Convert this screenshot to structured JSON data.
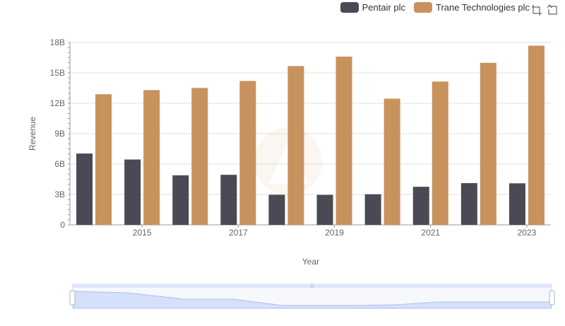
{
  "chart_data": {
    "type": "bar",
    "title": "",
    "xlabel": "Year",
    "ylabel": "Revenue",
    "categories": [
      "2014",
      "2015",
      "2016",
      "2017",
      "2018",
      "2019",
      "2020",
      "2021",
      "2022",
      "2023"
    ],
    "x_tick_labels": [
      "2015",
      "2017",
      "2019",
      "2021",
      "2023"
    ],
    "y_tick_labels": [
      "0",
      "3B",
      "6B",
      "9B",
      "12B",
      "15B",
      "18B"
    ],
    "ylim": [
      0,
      18000000000
    ],
    "grid": true,
    "legend_position": "top-right",
    "series": [
      {
        "name": "Pentair plc",
        "color": "#4a4a55",
        "values": [
          7040000000,
          6450000000,
          4890000000,
          4940000000,
          2970000000,
          2960000000,
          3020000000,
          3760000000,
          4120000000,
          4100000000
        ]
      },
      {
        "name": "Trane Technologies plc",
        "color": "#c8925d",
        "values": [
          12890000000,
          13300000000,
          13510000000,
          14200000000,
          15670000000,
          16600000000,
          12450000000,
          14140000000,
          15990000000,
          17680000000
        ]
      }
    ]
  },
  "toolbox": {
    "zoom_icon": "zoom-icon",
    "restore_icon": "restore-icon"
  }
}
